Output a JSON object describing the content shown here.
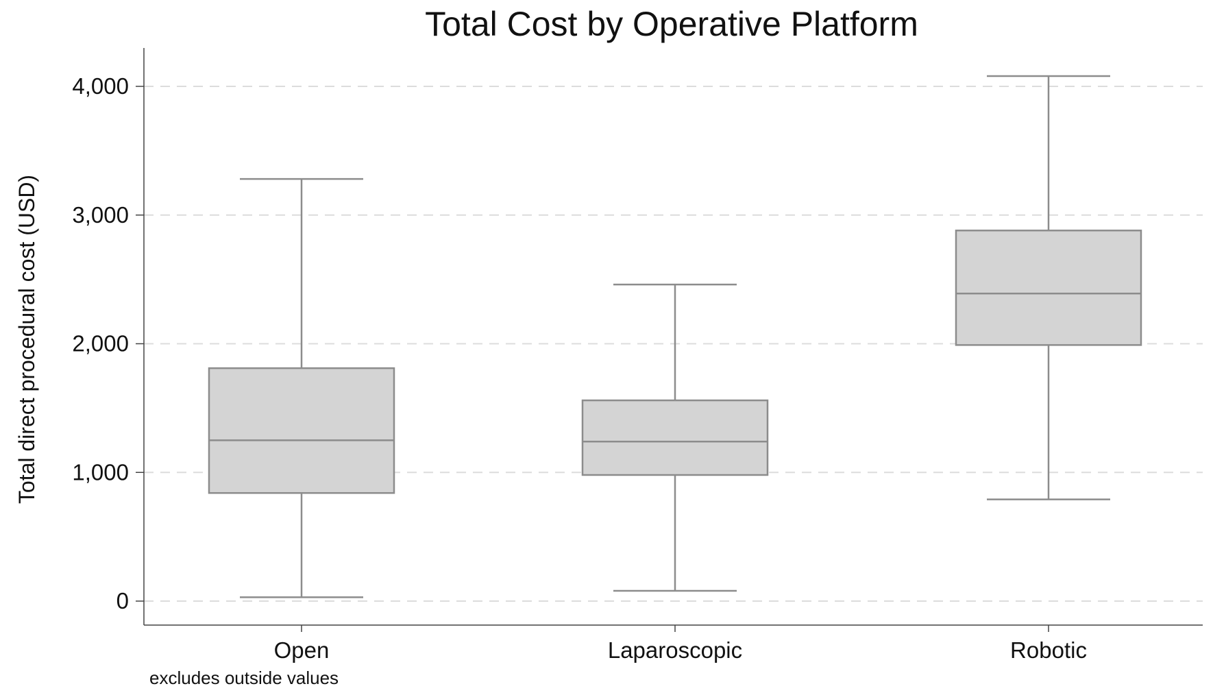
{
  "chart_data": {
    "type": "box",
    "title": "Total Cost by Operative Platform",
    "xlabel": "",
    "ylabel": "Total direct procedural cost (USD)",
    "note": "excludes outside values",
    "ylim": [
      -200,
      4300
    ],
    "yticks": [
      0,
      1000,
      2000,
      3000,
      4000
    ],
    "ytick_labels": [
      "0",
      "1,000",
      "2,000",
      "3,000",
      "4,000"
    ],
    "grid": "horizontal-dashed",
    "categories": [
      "Open",
      "Laparoscopic",
      "Robotic"
    ],
    "boxes": [
      {
        "category": "Open",
        "whisker_low": 30,
        "q1": 840,
        "median": 1250,
        "q3": 1810,
        "whisker_high": 3280
      },
      {
        "category": "Laparoscopic",
        "whisker_low": 80,
        "q1": 980,
        "median": 1240,
        "q3": 1560,
        "whisker_high": 2460
      },
      {
        "category": "Robotic",
        "whisker_low": 790,
        "q1": 1990,
        "median": 2390,
        "q3": 2880,
        "whisker_high": 4080
      }
    ],
    "colors": {
      "box_fill": "#d4d4d4",
      "box_stroke": "#8c8c8c",
      "grid": "#dcdcdc",
      "axis": "#444444"
    }
  }
}
